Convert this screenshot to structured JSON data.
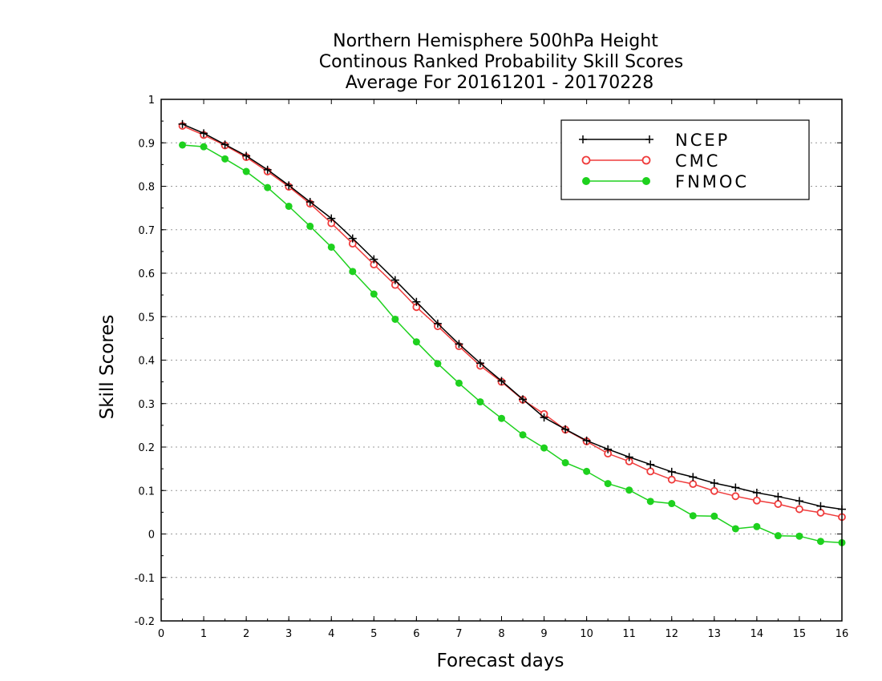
{
  "chart_data": {
    "type": "line",
    "title": [
      "Northern Hemisphere 500hPa Height",
      "Continous Ranked Probability Skill Scores",
      "Average For 20161201 - 20170228"
    ],
    "xlabel": "Forecast days",
    "ylabel": "Skill Scores",
    "xlim": [
      0,
      16
    ],
    "ylim": [
      -0.2,
      1
    ],
    "x_ticks": [
      "0",
      "1",
      "2",
      "3",
      "4",
      "5",
      "6",
      "7",
      "8",
      "9",
      "10",
      "11",
      "12",
      "13",
      "14",
      "15",
      "16"
    ],
    "y_ticks": [
      "-0.2",
      "-0.1",
      "0",
      "0.1",
      "0.2",
      "0.3",
      "0.4",
      "0.5",
      "0.6",
      "0.7",
      "0.8",
      "0.9",
      "1"
    ],
    "grid": "horizontal dotted",
    "legend_position": "top-right",
    "x": [
      0.5,
      1,
      1.5,
      2,
      2.5,
      3,
      3.5,
      4,
      4.5,
      5,
      5.5,
      6,
      6.5,
      7,
      7.5,
      8,
      8.5,
      9,
      9.5,
      10,
      10.5,
      11,
      11.5,
      12,
      12.5,
      13,
      13.5,
      14,
      14.5,
      15,
      15.5,
      16
    ],
    "series": [
      {
        "name": "NCEP",
        "color": "#000000",
        "marker": "plus",
        "values": [
          0.943,
          0.922,
          0.896,
          0.87,
          0.838,
          0.802,
          0.764,
          0.726,
          0.68,
          0.632,
          0.584,
          0.534,
          0.484,
          0.437,
          0.393,
          0.352,
          0.31,
          0.268,
          0.241,
          0.215,
          0.195,
          0.177,
          0.16,
          0.143,
          0.131,
          0.117,
          0.107,
          0.095,
          0.086,
          0.076,
          0.064,
          0.057
        ]
      },
      {
        "name": "CMC",
        "color": "#ef3b3b",
        "marker": "open-circle",
        "values": [
          0.939,
          0.918,
          0.894,
          0.867,
          0.834,
          0.799,
          0.76,
          0.715,
          0.668,
          0.62,
          0.573,
          0.522,
          0.478,
          0.432,
          0.387,
          0.35,
          0.309,
          0.276,
          0.24,
          0.213,
          0.185,
          0.167,
          0.144,
          0.125,
          0.115,
          0.099,
          0.087,
          0.077,
          0.069,
          0.057,
          0.049,
          0.039
        ]
      },
      {
        "name": "FNMOC",
        "color": "#1ed11e",
        "marker": "filled-circle",
        "values": [
          0.895,
          0.891,
          0.863,
          0.834,
          0.797,
          0.754,
          0.708,
          0.66,
          0.604,
          0.552,
          0.494,
          0.442,
          0.392,
          0.347,
          0.304,
          0.266,
          0.228,
          0.198,
          0.164,
          0.144,
          0.116,
          0.101,
          0.075,
          0.07,
          0.042,
          0.041,
          0.012,
          0.017,
          -0.004,
          -0.005,
          -0.017,
          -0.02
        ]
      }
    ]
  }
}
